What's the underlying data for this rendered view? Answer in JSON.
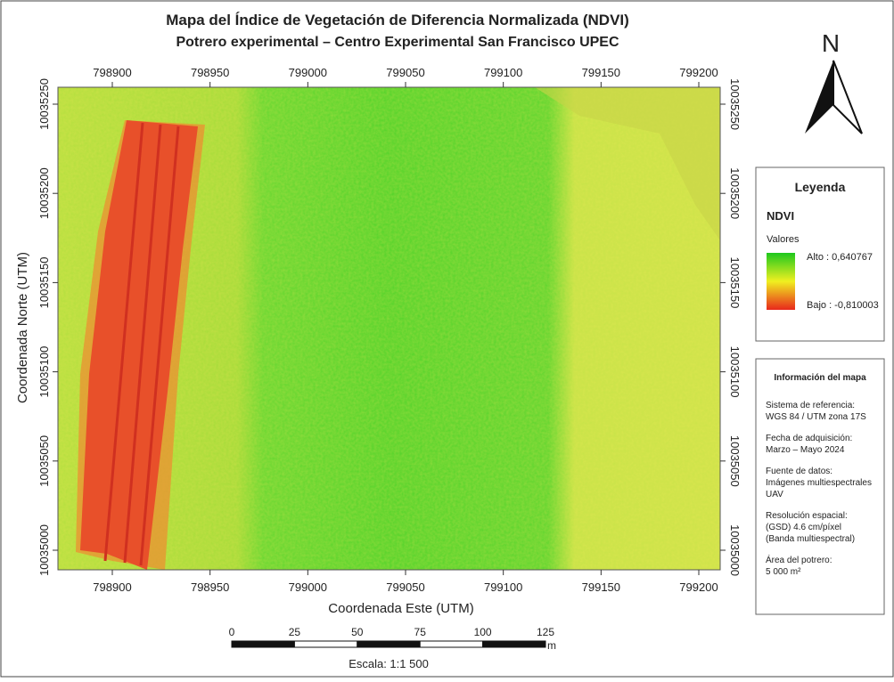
{
  "title": "Mapa del Índice de Vegetación de Diferencia Normalizada (NDVI)",
  "subtitle": "Potrero experimental – Centro Experimental San Francisco UPEC",
  "north": "N",
  "x_axis": {
    "label": "Coordenada Este (UTM)",
    "ticks": [
      798900,
      798950,
      799000,
      799050,
      799100,
      799150,
      799200
    ]
  },
  "y_axis": {
    "label": "Coordenada Norte (UTM)",
    "ticks": [
      10035000,
      10035050,
      10035100,
      10035150,
      10035200,
      10035250
    ]
  },
  "legend": {
    "title": "Leyenda",
    "layer": "NDVI",
    "subtitle": "Valores",
    "high": "Alto : 0,640767",
    "low": "Bajo : -0,810003"
  },
  "info": {
    "title": "Información del mapa",
    "items": [
      {
        "label": "Sistema de referencia:",
        "lines": [
          "WGS 84 / UTM zona 17S"
        ]
      },
      {
        "label": "Fecha de adquisición:",
        "lines": [
          "Marzo – Mayo 2024"
        ]
      },
      {
        "label": "Fuente de datos:",
        "lines": [
          "Imágenes multiespectrales",
          "UAV"
        ]
      },
      {
        "label": "Resolución espacial:",
        "lines": [
          "(GSD) 4.6 cm/píxel",
          "(Banda multiespectral)"
        ]
      },
      {
        "label": "Área del potrero:",
        "lines": [
          "5 000 m²"
        ]
      }
    ]
  },
  "scale_bar": {
    "ticks": [
      0,
      25,
      50,
      75,
      100,
      125
    ],
    "unit": "m",
    "label": "Escala: 1:1 500"
  }
}
